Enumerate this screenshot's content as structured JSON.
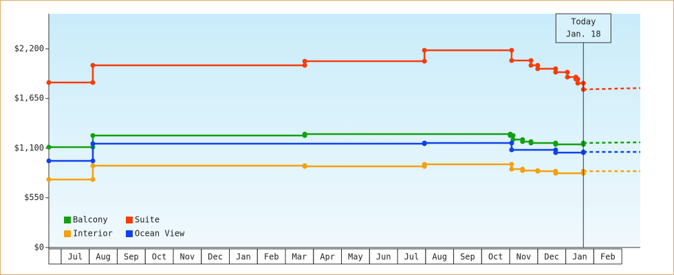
{
  "chart_data": {
    "type": "step-line",
    "xlim": [
      -0.44,
      20.66
    ],
    "xticks": [
      {
        "value": 0.5,
        "label": "Jul"
      },
      {
        "value": 1.5,
        "label": "Aug"
      },
      {
        "value": 2.5,
        "label": "Sep"
      },
      {
        "value": 3.5,
        "label": "Oct"
      },
      {
        "value": 4.5,
        "label": "Nov"
      },
      {
        "value": 5.5,
        "label": "Dec"
      },
      {
        "value": 6.5,
        "label": "Jan"
      },
      {
        "value": 7.5,
        "label": "Feb"
      },
      {
        "value": 8.5,
        "label": "Mar"
      },
      {
        "value": 9.5,
        "label": "Apr"
      },
      {
        "value": 10.5,
        "label": "May"
      },
      {
        "value": 11.5,
        "label": "Jun"
      },
      {
        "value": 12.5,
        "label": "Jul"
      },
      {
        "value": 13.5,
        "label": "Aug"
      },
      {
        "value": 14.5,
        "label": "Sep"
      },
      {
        "value": 15.5,
        "label": "Oct"
      },
      {
        "value": 16.5,
        "label": "Nov"
      },
      {
        "value": 17.5,
        "label": "Dec"
      },
      {
        "value": 18.5,
        "label": "Jan"
      },
      {
        "value": 19.5,
        "label": "Feb"
      }
    ],
    "ylim": [
      0,
      2588
    ],
    "yticks": [
      {
        "value": 0,
        "label": "$0"
      },
      {
        "value": 550,
        "label": "$550"
      },
      {
        "value": 1100,
        "label": "$1,100"
      },
      {
        "value": 1650,
        "label": "$1,650"
      },
      {
        "value": 2200,
        "label": "$2,200"
      }
    ],
    "today": {
      "x": 18.63,
      "label": [
        "Today",
        "Jan. 18"
      ]
    },
    "projected_x": [
      18.63,
      20.66
    ],
    "legend": "bottom-left",
    "series": [
      {
        "name": "Balcony",
        "color": "#11a011",
        "x": [
          -0.44,
          1.13,
          8.69,
          16.02,
          16.12,
          16.46,
          16.76,
          17.64,
          18.63
        ],
        "values": [
          1111,
          1240,
          1256,
          1240,
          1195,
          1172,
          1157,
          1142,
          1157
        ],
        "projected_values": [
          1157,
          1165
        ]
      },
      {
        "name": "Suite",
        "color": "#f53c0c",
        "x": [
          -0.44,
          1.13,
          8.69,
          12.96,
          16.07,
          16.76,
          17.0,
          17.64,
          18.06,
          18.36,
          18.43,
          18.63
        ],
        "values": [
          1827,
          2017,
          2063,
          2184,
          2070,
          2017,
          1979,
          1941,
          1887,
          1865,
          1819,
          1750
        ],
        "projected_values": [
          1750,
          1765
        ]
      },
      {
        "name": "Interior",
        "color": "#f5a00c",
        "x": [
          -0.44,
          1.13,
          8.69,
          12.96,
          16.07,
          16.46,
          17.0,
          17.64,
          18.63
        ],
        "values": [
          753,
          906,
          898,
          921,
          868,
          852,
          845,
          822,
          845
        ],
        "projected_values": [
          845,
          845
        ]
      },
      {
        "name": "Ocean View",
        "color": "#1040f0",
        "x": [
          -0.44,
          1.13,
          12.96,
          16.07,
          17.64,
          18.63
        ],
        "values": [
          959,
          1149,
          1157,
          1081,
          1050,
          1058
        ],
        "projected_values": [
          1058,
          1058
        ]
      }
    ]
  }
}
